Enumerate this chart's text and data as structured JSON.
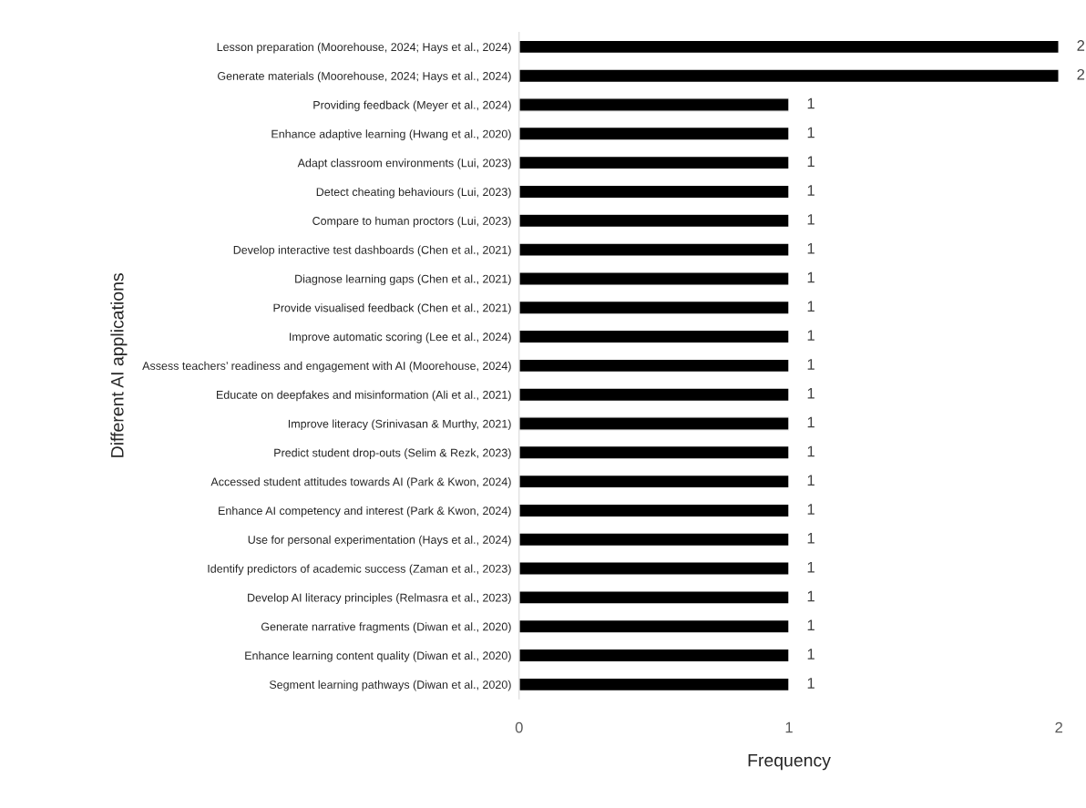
{
  "chart_data": {
    "type": "bar",
    "orientation": "horizontal",
    "xlabel": "Frequency",
    "ylabel": "Different AI applications",
    "categories": [
      "Lesson preparation (Moorehouse, 2024; Hays et al., 2024)",
      "Generate materials (Moorehouse, 2024; Hays et al., 2024)",
      "Providing feedback (Meyer et al., 2024)",
      "Enhance adaptive learning (Hwang et al., 2020)",
      "Adapt classroom environments (Lui, 2023)",
      "Detect cheating behaviours (Lui, 2023)",
      "Compare to human proctors (Lui, 2023)",
      "Develop interactive test dashboards (Chen et al., 2021)",
      "Diagnose learning gaps (Chen et al., 2021)",
      "Provide visualised feedback (Chen et al., 2021)",
      "Improve automatic scoring (Lee et al., 2024)",
      "Assess teachers’ readiness and engagement with AI (Moorehouse, 2024)",
      "Educate on deepfakes and misinformation (Ali et al., 2021)",
      "Improve literacy (Srinivasan & Murthy, 2021)",
      "Predict student drop-outs (Selim & Rezk, 2023)",
      "Accessed student attitudes towards AI (Park & Kwon, 2024)",
      "Enhance AI competency and interest (Park & Kwon, 2024)",
      "Use for personal experimentation (Hays et al., 2024)",
      "Identify predictors of academic success (Zaman et al., 2023)",
      "Develop AI literacy principles (Relmasra et al., 2023)",
      "Generate narrative fragments (Diwan et al., 2020)",
      "Enhance learning content quality (Diwan et al., 2020)",
      "Segment learning pathways (Diwan et al., 2020)"
    ],
    "values": [
      2,
      2,
      1,
      1,
      1,
      1,
      1,
      1,
      1,
      1,
      1,
      1,
      1,
      1,
      1,
      1,
      1,
      1,
      1,
      1,
      1,
      1,
      1
    ],
    "color": "#000000",
    "xlim": [
      0,
      2
    ],
    "xticks": [
      0,
      1,
      2
    ],
    "data_labels": true,
    "grid": false
  }
}
